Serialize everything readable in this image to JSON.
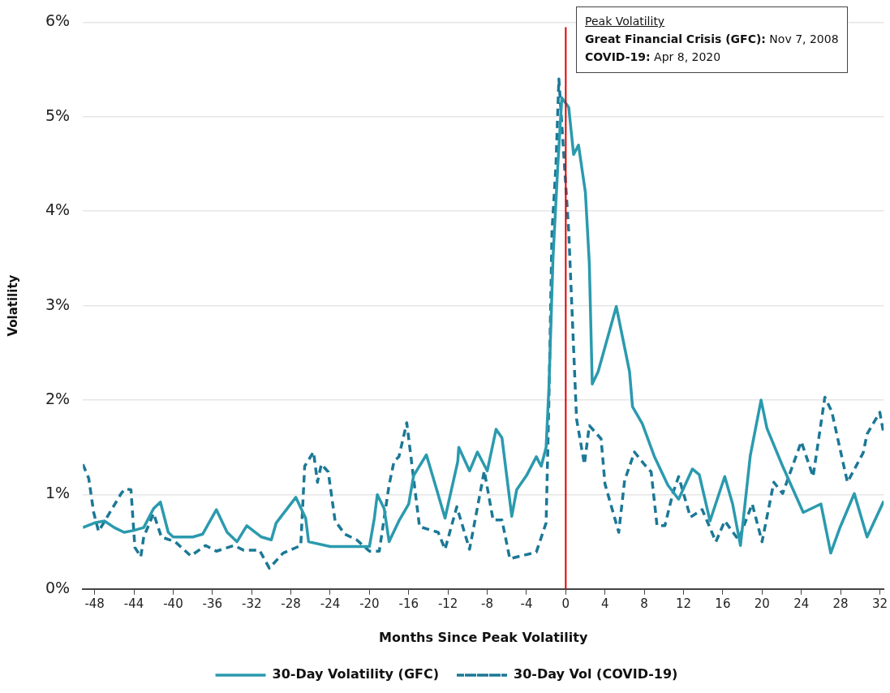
{
  "chart_data": {
    "type": "line",
    "xlabel": "Months Since Peak Volatility",
    "ylabel": "Volatility",
    "xlim": [
      -49.2,
      32.4
    ],
    "xticks": [
      -48,
      -44,
      -40,
      -36,
      -32,
      -28,
      -24,
      -20,
      -16,
      -12,
      -8,
      -4,
      0,
      4,
      8,
      12,
      16,
      20,
      24,
      28,
      32
    ],
    "ylim": [
      0,
      6
    ],
    "yticks": [
      {
        "value": 0,
        "label": "0%"
      },
      {
        "value": 1,
        "label": "1%"
      },
      {
        "value": 2,
        "label": "2%"
      },
      {
        "value": 3,
        "label": "3%"
      },
      {
        "value": 4,
        "label": "4%"
      },
      {
        "value": 5,
        "label": "5%"
      },
      {
        "value": 6,
        "label": "6%"
      }
    ],
    "grid": "y",
    "legend": "bottom",
    "marker": "none",
    "ref_lines": [
      {
        "axis": "x",
        "value": 0,
        "color": "#e00000"
      }
    ],
    "annotations": [
      "Peak Volatility",
      "Great Financial Crisis (GFC): Nov 7, 2008",
      "COVID-19: Apr 8, 2020"
    ],
    "series": [
      {
        "name": "30-Day Volatility (GFC)",
        "color": "#2b9aae",
        "line_style": "solid",
        "x": [
          -49.2,
          -48,
          -47,
          -46,
          -45,
          -44,
          -43,
          -42,
          -41.3,
          -40.5,
          -40,
          -38,
          -37,
          -35.6,
          -34.5,
          -33.5,
          -32.5,
          -31,
          -30,
          -29.5,
          -27.5,
          -26.5,
          -26.2,
          -24,
          -22,
          -20,
          -19.5,
          -19.2,
          -18.5,
          -18,
          -17,
          -16,
          -15.5,
          -14.2,
          -13,
          -12.3,
          -11,
          -10.9,
          -9.8,
          -9,
          -8,
          -7.1,
          -6.5,
          -5.5,
          -5,
          -4,
          -3,
          -2.5,
          -2,
          -1.7,
          -1.3,
          -0.8,
          -0.4,
          0.3,
          0.8,
          1.3,
          2,
          2.4,
          2.7,
          3.3,
          5.15,
          6.5,
          6.8,
          7.8,
          9,
          10.4,
          11.5,
          12.9,
          13.6,
          14.7,
          16.2,
          17,
          17.8,
          18.8,
          19.9,
          20.5,
          22.1,
          24.2,
          26,
          27,
          27.9,
          29.4,
          30.7,
          32.4
        ],
        "values": [
          0.65,
          0.7,
          0.72,
          0.65,
          0.6,
          0.62,
          0.65,
          0.85,
          0.92,
          0.6,
          0.55,
          0.55,
          0.58,
          0.84,
          0.6,
          0.5,
          0.67,
          0.55,
          0.52,
          0.7,
          0.97,
          0.75,
          0.5,
          0.45,
          0.45,
          0.45,
          0.75,
          1.0,
          0.85,
          0.5,
          0.72,
          0.9,
          1.2,
          1.42,
          1.0,
          0.75,
          1.35,
          1.5,
          1.25,
          1.45,
          1.25,
          1.69,
          1.6,
          0.77,
          1.05,
          1.2,
          1.4,
          1.3,
          1.5,
          2.17,
          3.5,
          4.5,
          5.2,
          5.1,
          4.6,
          4.7,
          4.2,
          3.45,
          2.17,
          2.3,
          2.99,
          2.3,
          1.93,
          1.75,
          1.41,
          1.1,
          0.95,
          1.27,
          1.21,
          0.72,
          1.19,
          0.9,
          0.46,
          1.41,
          2.0,
          1.7,
          1.3,
          0.81,
          0.9,
          0.38,
          0.64,
          1.01,
          0.55,
          0.93
        ]
      },
      {
        "name": "30-Day Vol (COVID-19)",
        "color": "#1b7896",
        "line_style": "dashed",
        "x": [
          -49.2,
          -48.6,
          -48.1,
          -47.6,
          -45.3,
          -44.9,
          -44.3,
          -43.9,
          -43.3,
          -43,
          -42,
          -41.2,
          -39.8,
          -38.2,
          -36.7,
          -35.6,
          -33.8,
          -32.8,
          -31.2,
          -30.2,
          -28.8,
          -27,
          -26.6,
          -25.7,
          -25.3,
          -24.9,
          -24.2,
          -23.5,
          -22.5,
          -21.3,
          -20,
          -19,
          -18,
          -17.5,
          -17,
          -16.2,
          -14.9,
          -13,
          -12.3,
          -11.1,
          -9.8,
          -8.3,
          -7.4,
          -6.5,
          -5.7,
          -3,
          -2,
          -1.7,
          -1.4,
          -1,
          -0.7,
          0.3,
          1.1,
          1.9,
          2.4,
          3.6,
          4,
          5.4,
          6,
          7,
          8,
          8.7,
          9.3,
          10.1,
          10.9,
          11.5,
          12.7,
          13.9,
          15.3,
          16.2,
          17.6,
          19,
          20,
          21.2,
          22.1,
          24,
          25.2,
          26.4,
          27.1,
          28.7,
          30.3,
          30.7,
          32,
          32.4
        ],
        "values": [
          1.32,
          1.17,
          0.81,
          0.61,
          1.01,
          1.06,
          1.05,
          0.44,
          0.34,
          0.55,
          0.8,
          0.55,
          0.5,
          0.35,
          0.46,
          0.4,
          0.46,
          0.41,
          0.41,
          0.22,
          0.38,
          0.46,
          1.3,
          1.45,
          1.13,
          1.32,
          1.24,
          0.72,
          0.58,
          0.52,
          0.4,
          0.4,
          1.1,
          1.35,
          1.4,
          1.76,
          0.66,
          0.6,
          0.42,
          0.87,
          0.42,
          1.25,
          0.73,
          0.73,
          0.32,
          0.39,
          0.7,
          2.07,
          3.79,
          4.48,
          5.4,
          3.79,
          1.8,
          1.32,
          1.73,
          1.59,
          1.11,
          0.6,
          1.15,
          1.45,
          1.32,
          1.24,
          0.67,
          0.67,
          1.01,
          1.19,
          0.76,
          0.84,
          0.5,
          0.72,
          0.52,
          0.9,
          0.5,
          1.13,
          1.01,
          1.56,
          1.19,
          2.03,
          1.88,
          1.13,
          1.44,
          1.64,
          1.87,
          1.64
        ]
      }
    ]
  }
}
